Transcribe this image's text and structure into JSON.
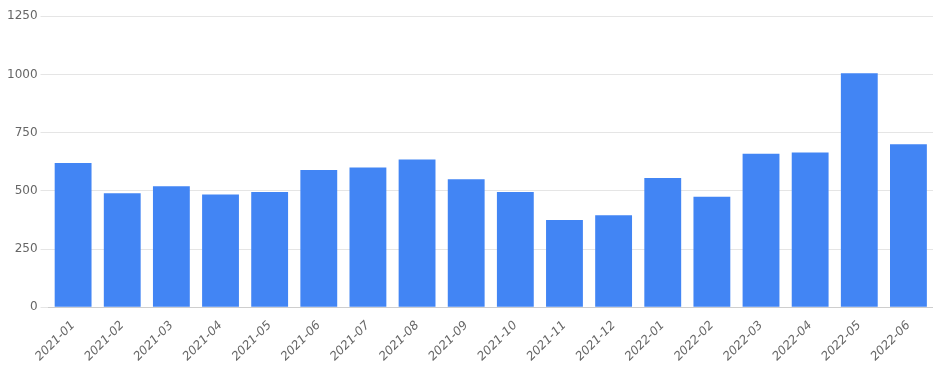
{
  "chart_data": {
    "type": "bar",
    "categories": [
      "2021-01",
      "2021-02",
      "2021-03",
      "2021-04",
      "2021-05",
      "2021-06",
      "2021-07",
      "2021-08",
      "2021-09",
      "2021-10",
      "2021-11",
      "2021-12",
      "2022-01",
      "2022-02",
      "2022-03",
      "2022-04",
      "2022-05",
      "2022-06"
    ],
    "values": [
      620,
      490,
      520,
      485,
      495,
      590,
      600,
      635,
      550,
      495,
      375,
      395,
      555,
      475,
      660,
      665,
      1005,
      700
    ],
    "color": "#4285F4",
    "ylim": [
      0,
      1250
    ],
    "yticks": [
      0,
      250,
      500,
      750,
      1000,
      1250
    ],
    "grid": true
  }
}
